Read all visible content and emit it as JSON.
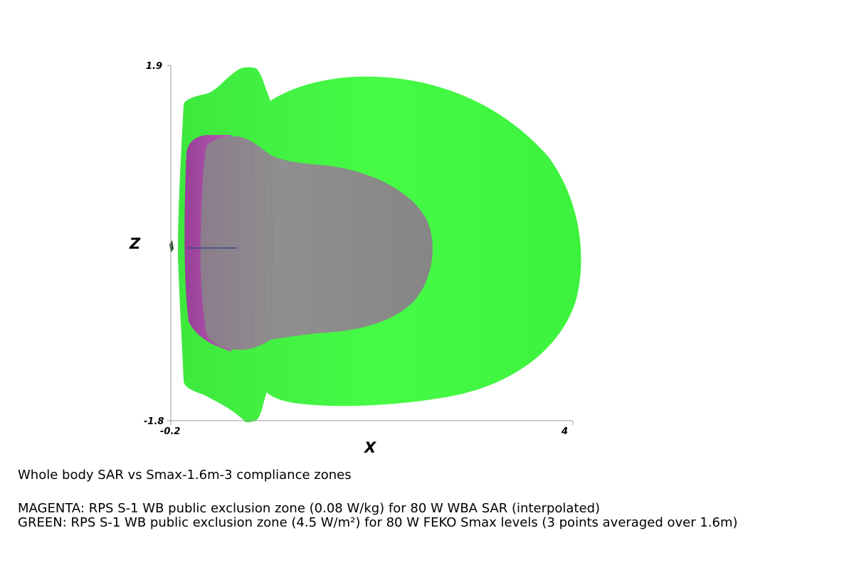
{
  "figure": {
    "axes": {
      "x": {
        "title": "X",
        "min_label": "-0.2",
        "max_label": "4",
        "min": -0.2,
        "max": 4
      },
      "z": {
        "title": "Z",
        "min_label": "-1.8",
        "max_label": "1.9",
        "min": -1.8,
        "max": 1.9
      }
    },
    "zones": [
      {
        "name": "green",
        "color": "#44f944"
      },
      {
        "name": "magenta",
        "color": "#a84aa6"
      },
      {
        "name": "gray-overlay",
        "color": "#8a8a8a"
      }
    ]
  },
  "captions": {
    "title": "Whole body SAR vs Smax-1.6m-3 compliance zones",
    "magenta": "MAGENTA: RPS S-1 WB public exclusion zone (0.08 W/kg) for 80 W WBA SAR (interpolated)",
    "green": "GREEN: RPS S-1 WB public exclusion zone (4.5 W/m²) for 80 W FEKO Smax levels (3 points averaged over 1.6m)"
  }
}
